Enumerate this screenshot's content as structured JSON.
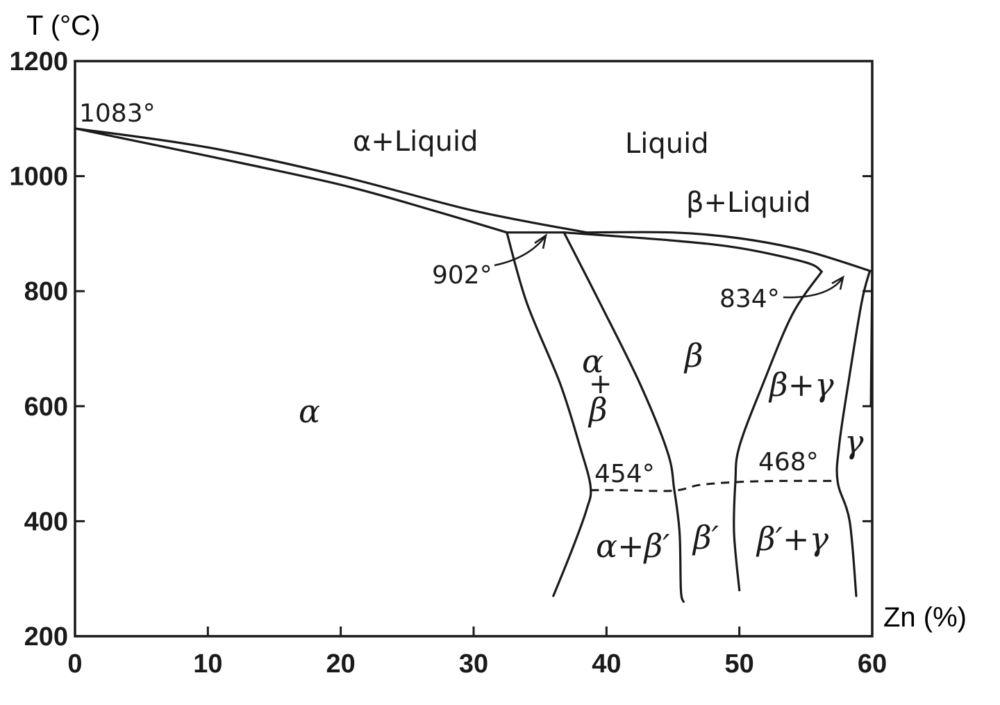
{
  "chart_data": {
    "type": "phase-diagram",
    "xlabel": "Zn (%)",
    "ylabel": "T (°C)",
    "xlim": [
      0,
      60
    ],
    "ylim": [
      200,
      1200
    ],
    "x_ticks": [
      0,
      10,
      20,
      30,
      40,
      50,
      60
    ],
    "y_ticks": [
      200,
      400,
      600,
      800,
      1000,
      1200
    ],
    "grid": false,
    "boundaries": [
      {
        "name": "liquidus-alpha",
        "points": [
          [
            0,
            1083
          ],
          [
            10,
            1050
          ],
          [
            20,
            1000
          ],
          [
            30,
            940
          ],
          [
            38.5,
            902
          ]
        ]
      },
      {
        "name": "solidus-alpha",
        "points": [
          [
            0,
            1083
          ],
          [
            10,
            1035
          ],
          [
            20,
            985
          ],
          [
            27,
            940
          ],
          [
            32.5,
            902
          ]
        ]
      },
      {
        "name": "peritectic-902",
        "points": [
          [
            32.5,
            902
          ],
          [
            36.8,
            902
          ]
        ]
      },
      {
        "name": "liquidus-beta",
        "points": [
          [
            38.5,
            902
          ],
          [
            45,
            902
          ],
          [
            50,
            892
          ],
          [
            55,
            870
          ],
          [
            60,
            834
          ]
        ]
      },
      {
        "name": "solidus-beta",
        "points": [
          [
            36.8,
            902
          ],
          [
            45,
            888
          ],
          [
            50,
            875
          ],
          [
            55,
            850
          ],
          [
            56.2,
            834
          ]
        ]
      },
      {
        "name": "alpha-solvus",
        "points": [
          [
            32.5,
            902
          ],
          [
            34,
            780
          ],
          [
            36.5,
            640
          ],
          [
            38,
            530
          ],
          [
            38.8,
            460
          ],
          [
            38.5,
            420
          ],
          [
            37.4,
            350
          ],
          [
            36,
            270
          ]
        ]
      },
      {
        "name": "beta-boundary-left",
        "points": [
          [
            36.8,
            902
          ],
          [
            39.5,
            780
          ],
          [
            42.5,
            640
          ],
          [
            44.6,
            520
          ],
          [
            45.1,
            455
          ],
          [
            45.5,
            380
          ],
          [
            45.6,
            280
          ],
          [
            45.8,
            260
          ]
        ]
      },
      {
        "name": "beta-boundary-right",
        "points": [
          [
            56.2,
            834
          ],
          [
            54,
            760
          ],
          [
            51.8,
            640
          ],
          [
            50,
            530
          ],
          [
            49.7,
            468
          ],
          [
            49.6,
            380
          ],
          [
            50,
            280
          ]
        ]
      },
      {
        "name": "gamma-boundary-left",
        "points": [
          [
            59.8,
            834
          ],
          [
            59.2,
            780
          ],
          [
            58.2,
            640
          ],
          [
            57.5,
            530
          ],
          [
            57.4,
            468
          ],
          [
            58.3,
            400
          ],
          [
            58.8,
            270
          ]
        ]
      },
      {
        "name": "gamma-boundary-right",
        "points": [
          [
            60,
            834
          ],
          [
            59.9,
            600
          ]
        ]
      }
    ],
    "ordering_lines": [
      {
        "name": "ordering-454",
        "points": [
          [
            38.8,
            454
          ],
          [
            41,
            454
          ],
          [
            45,
            453
          ],
          [
            47,
            463
          ],
          [
            49.7,
            468
          ],
          [
            53,
            470
          ],
          [
            57.4,
            470
          ]
        ]
      }
    ],
    "annotations": [
      {
        "text": "1083°",
        "x": 0,
        "y": 1083
      },
      {
        "text": "902°",
        "x": 35,
        "y": 902
      },
      {
        "text": "834°",
        "x": 60,
        "y": 834
      },
      {
        "text": "454°",
        "x": 41,
        "y": 454
      },
      {
        "text": "468°",
        "x": 54,
        "y": 468
      }
    ],
    "regions": [
      {
        "label": "α+Liquid"
      },
      {
        "label": "Liquid"
      },
      {
        "label": "β+Liquid"
      },
      {
        "label": "α"
      },
      {
        "label": "α + β"
      },
      {
        "label": "β"
      },
      {
        "label": "β+γ"
      },
      {
        "label": "γ"
      },
      {
        "label": "α+β′"
      },
      {
        "label": "β′"
      },
      {
        "label": "β′+γ"
      }
    ]
  }
}
